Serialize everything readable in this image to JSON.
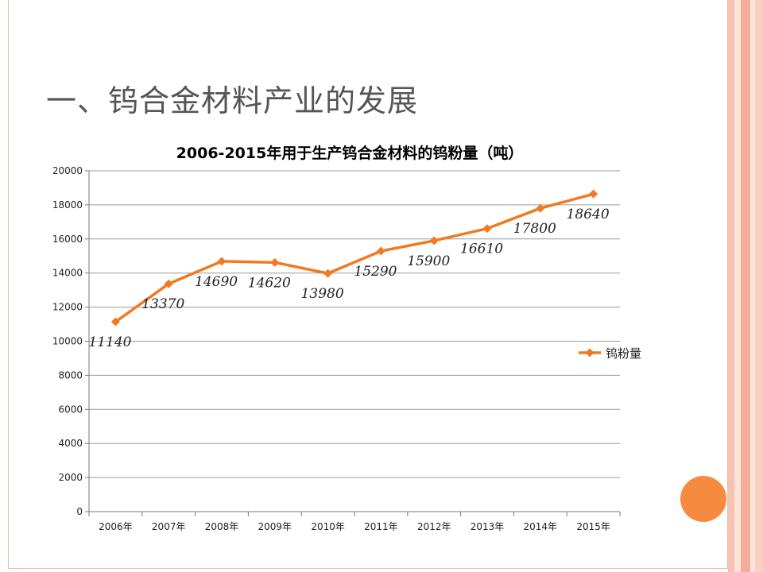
{
  "slide": {
    "title": "一、钨合金材料产业的发展"
  },
  "colors": {
    "accent": "#f07a21",
    "frame": "#f2b8a6",
    "stripes": [
      "#f6c3b3",
      "#fbe3da",
      "#f4ad97",
      "#fbe3da",
      "#f8cfc2"
    ],
    "deco_circle": "#f68b40"
  },
  "chart_data": {
    "type": "line",
    "title": "2006-2015年用于生产钨合金材料的钨粉量（吨）",
    "categories": [
      "2006年",
      "2007年",
      "2008年",
      "2009年",
      "2010年",
      "2011年",
      "2012年",
      "2013年",
      "2014年",
      "2015年"
    ],
    "series": [
      {
        "name": "钨粉量",
        "values": [
          11140,
          13370,
          14690,
          14620,
          13980,
          15290,
          15900,
          16610,
          17800,
          18640
        ]
      }
    ],
    "data_labels": [
      "11140",
      "13370",
      "14690",
      "14620",
      "13980",
      "15290",
      "15900",
      "16610",
      "17800",
      "18640"
    ],
    "y_ticks": [
      "0",
      "2000",
      "4000",
      "6000",
      "8000",
      "10000",
      "12000",
      "14000",
      "16000",
      "18000",
      "20000"
    ],
    "ylim": [
      0,
      20000
    ],
    "xlabel": "",
    "ylabel": "",
    "grid": true,
    "legend": "right",
    "marker": "diamond"
  }
}
